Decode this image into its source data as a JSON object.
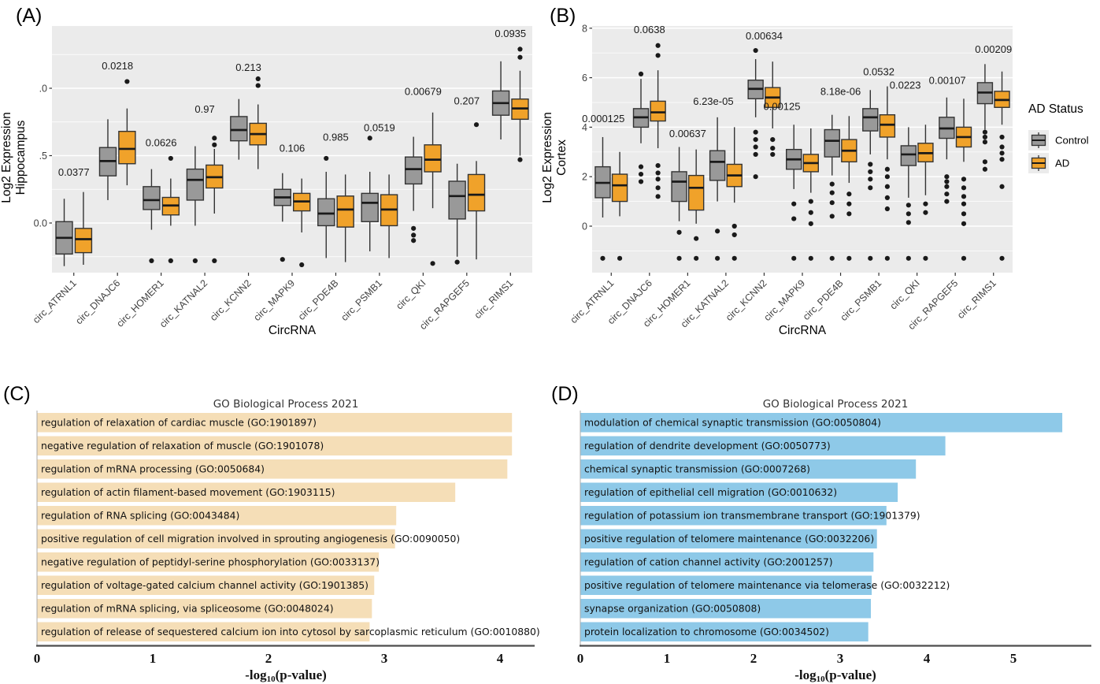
{
  "figure": {
    "colors": {
      "control": "#999999",
      "ad": "#F0A22A",
      "panel_bg": "#EBEBEB",
      "grid_major": "#FFFFFF",
      "grid_minor": "#F7F7F7",
      "box_border": "#333333",
      "median": "#1A1A1A",
      "outlier": "#1A1A1A",
      "axis_text": "#404040",
      "tick_mark": "#333333",
      "bar_c": "#F5DEB7",
      "bar_d": "#8EC9E8",
      "bar_axis": "#4D4D4D",
      "legend_key_bg": "#EBEBEB",
      "text": "#000000"
    },
    "legend": {
      "title": "AD Status",
      "items": [
        {
          "label": "Control",
          "color_key": "control"
        },
        {
          "label": "AD",
          "color_key": "ad"
        }
      ]
    }
  },
  "chart_data": [
    {
      "id": "A",
      "type": "boxplot",
      "panel_label": "(A)",
      "ylabel_lines": [
        "Log2 Expression",
        "Hippocampus"
      ],
      "xlabel": "CircRNA",
      "series": [
        "Control",
        "AD"
      ],
      "yticks": [
        {
          "label": ".0",
          "value": 1.0
        },
        {
          "label": ".5",
          "value": 0.5
        },
        {
          "label": "0.0",
          "value": 0.0
        }
      ],
      "ylim": [
        -0.37,
        1.46
      ],
      "grid_major": [
        0.0,
        0.5,
        1.0
      ],
      "grid_minor": [
        -0.25,
        0.25,
        0.75,
        1.25
      ],
      "groups": [
        {
          "category": "circ_ATRNL1",
          "p_value": "0.0377",
          "p_y": 0.35,
          "p_dx": 0,
          "control": {
            "whisker_lo": -0.32,
            "q1": -0.23,
            "median": -0.11,
            "q3": 0.01,
            "whisker_hi": 0.18,
            "outliers": []
          },
          "ad": {
            "whisker_lo": -0.31,
            "q1": -0.22,
            "median": -0.12,
            "q3": -0.04,
            "whisker_hi": 0.23,
            "outliers": []
          }
        },
        {
          "category": "circ_DNAJC6",
          "p_value": "0.0218",
          "p_y": 1.14,
          "p_dx": 0,
          "control": {
            "whisker_lo": 0.17,
            "q1": 0.35,
            "median": 0.46,
            "q3": 0.56,
            "whisker_hi": 0.77,
            "outliers": []
          },
          "ad": {
            "whisker_lo": 0.28,
            "q1": 0.44,
            "median": 0.55,
            "q3": 0.68,
            "whisker_hi": 0.85,
            "outliers": [
              1.05
            ]
          }
        },
        {
          "category": "circ_HOMER1",
          "p_value": "0.0626",
          "p_y": 0.57,
          "p_dx": 0,
          "control": {
            "whisker_lo": -0.05,
            "q1": 0.1,
            "median": 0.17,
            "q3": 0.27,
            "whisker_hi": 0.4,
            "outliers": [
              -0.28
            ]
          },
          "ad": {
            "whisker_lo": -0.02,
            "q1": 0.06,
            "median": 0.13,
            "q3": 0.19,
            "whisker_hi": 0.33,
            "outliers": [
              0.48,
              -0.28
            ]
          }
        },
        {
          "category": "circ_KATNAL2",
          "p_value": "0.97",
          "p_y": 0.82,
          "p_dx": 0,
          "control": {
            "whisker_lo": -0.02,
            "q1": 0.17,
            "median": 0.32,
            "q3": 0.4,
            "whisker_hi": 0.57,
            "outliers": [
              -0.28
            ]
          },
          "ad": {
            "whisker_lo": 0.07,
            "q1": 0.26,
            "median": 0.34,
            "q3": 0.43,
            "whisker_hi": 0.55,
            "outliers": [
              0.63,
              0.58,
              -0.28
            ]
          }
        },
        {
          "category": "circ_KCNN2",
          "p_value": "0.213",
          "p_y": 1.13,
          "p_dx": 0,
          "control": {
            "whisker_lo": 0.47,
            "q1": 0.61,
            "median": 0.69,
            "q3": 0.79,
            "whisker_hi": 0.92,
            "outliers": []
          },
          "ad": {
            "whisker_lo": 0.4,
            "q1": 0.58,
            "median": 0.66,
            "q3": 0.74,
            "whisker_hi": 0.88,
            "outliers": [
              1.07,
              1.02
            ]
          }
        },
        {
          "category": "circ_MAPK9",
          "p_value": "0.106",
          "p_y": 0.53,
          "p_dx": 0,
          "control": {
            "whisker_lo": 0.01,
            "q1": 0.13,
            "median": 0.19,
            "q3": 0.25,
            "whisker_hi": 0.37,
            "outliers": [
              -0.27
            ]
          },
          "ad": {
            "whisker_lo": -0.07,
            "q1": 0.09,
            "median": 0.16,
            "q3": 0.22,
            "whisker_hi": 0.33,
            "outliers": [
              -0.31
            ]
          }
        },
        {
          "category": "circ_PDE4B",
          "p_value": "0.985",
          "p_y": 0.61,
          "p_dx": 0,
          "control": {
            "whisker_lo": -0.26,
            "q1": -0.02,
            "median": 0.07,
            "q3": 0.18,
            "whisker_hi": 0.38,
            "outliers": [
              0.48
            ]
          },
          "ad": {
            "whisker_lo": -0.29,
            "q1": -0.03,
            "median": 0.1,
            "q3": 0.2,
            "whisker_hi": 0.36,
            "outliers": []
          }
        },
        {
          "category": "circ_PSMB1",
          "p_value": "0.0519",
          "p_y": 0.68,
          "p_dx": 0,
          "control": {
            "whisker_lo": -0.21,
            "q1": 0.01,
            "median": 0.15,
            "q3": 0.22,
            "whisker_hi": 0.38,
            "outliers": [
              0.63
            ]
          },
          "ad": {
            "whisker_lo": -0.26,
            "q1": -0.02,
            "median": 0.1,
            "q3": 0.21,
            "whisker_hi": 0.36,
            "outliers": []
          }
        },
        {
          "category": "circ_QKI",
          "p_value": "0.00679",
          "p_y": 0.95,
          "p_dx": 0,
          "control": {
            "whisker_lo": 0.09,
            "q1": 0.29,
            "median": 0.4,
            "q3": 0.49,
            "whisker_hi": 0.64,
            "outliers": [
              -0.04,
              -0.09,
              -0.13
            ]
          },
          "ad": {
            "whisker_lo": 0.11,
            "q1": 0.38,
            "median": 0.47,
            "q3": 0.58,
            "whisker_hi": 0.82,
            "outliers": [
              -0.3
            ]
          }
        },
        {
          "category": "circ_RAPGEF5",
          "p_value": "0.207",
          "p_y": 0.88,
          "p_dx": 0,
          "control": {
            "whisker_lo": -0.25,
            "q1": 0.03,
            "median": 0.2,
            "q3": 0.31,
            "whisker_hi": 0.44,
            "outliers": [
              -0.29
            ]
          },
          "ad": {
            "whisker_lo": -0.27,
            "q1": 0.09,
            "median": 0.21,
            "q3": 0.36,
            "whisker_hi": 0.46,
            "outliers": [
              0.73
            ]
          }
        },
        {
          "category": "circ_RIMS1",
          "p_value": "0.0935",
          "p_y": 1.38,
          "p_dx": 0,
          "control": {
            "whisker_lo": 0.62,
            "q1": 0.8,
            "median": 0.89,
            "q3": 0.98,
            "whisker_hi": 1.2,
            "outliers": []
          },
          "ad": {
            "whisker_lo": 0.5,
            "q1": 0.77,
            "median": 0.85,
            "q3": 0.92,
            "whisker_hi": 1.13,
            "outliers": [
              1.29,
              1.23,
              0.47
            ]
          }
        }
      ]
    },
    {
      "id": "B",
      "type": "boxplot",
      "panel_label": "(B)",
      "ylabel_lines": [
        "Log2 Expression",
        "Cortex"
      ],
      "xlabel": "CircRNA",
      "series": [
        "Control",
        "AD"
      ],
      "yticks": [
        {
          "label": "8",
          "value": 8
        },
        {
          "label": "6",
          "value": 6
        },
        {
          "label": "4",
          "value": 4
        },
        {
          "label": "2",
          "value": 2
        },
        {
          "label": "0",
          "value": 0
        }
      ],
      "ylim": [
        -1.88,
        8.09
      ],
      "grid_major": [
        0,
        2,
        4,
        6,
        8
      ],
      "grid_minor": [
        -1,
        1,
        3,
        5,
        7
      ],
      "groups": [
        {
          "category": "circ_ATRNL1",
          "p_value": "0.000125",
          "p_y": 4.2,
          "p_dx": -10,
          "control": {
            "whisker_lo": 0.35,
            "q1": 1.15,
            "median": 1.75,
            "q3": 2.4,
            "whisker_hi": 3.6,
            "outliers": [
              -1.3
            ]
          },
          "ad": {
            "whisker_lo": 0.4,
            "q1": 1.0,
            "median": 1.65,
            "q3": 2.1,
            "whisker_hi": 3.0,
            "outliers": [
              -1.3
            ]
          }
        },
        {
          "category": "circ_DNAJC6",
          "p_value": "0.0638",
          "p_y": 7.8,
          "p_dx": 0,
          "control": {
            "whisker_lo": 3.35,
            "q1": 4.0,
            "median": 4.4,
            "q3": 4.75,
            "whisker_hi": 5.95,
            "outliers": [
              6.15,
              2.4,
              2.1,
              1.8
            ]
          },
          "ad": {
            "whisker_lo": 3.15,
            "q1": 4.25,
            "median": 4.6,
            "q3": 5.05,
            "whisker_hi": 6.3,
            "outliers": [
              7.3,
              6.9,
              2.45,
              2.15,
              1.9,
              1.55,
              1.2
            ]
          }
        },
        {
          "category": "circ_HOMER1",
          "p_value": "0.00637",
          "p_y": 3.6,
          "p_dx": 0,
          "control": {
            "whisker_lo": 0.2,
            "q1": 1.0,
            "median": 1.8,
            "q3": 2.2,
            "whisker_hi": 3.2,
            "outliers": [
              -0.25,
              -1.3
            ]
          },
          "ad": {
            "whisker_lo": 0.1,
            "q1": 0.65,
            "median": 1.55,
            "q3": 2.05,
            "whisker_hi": 3.1,
            "outliers": [
              -0.5,
              -1.3
            ]
          }
        },
        {
          "category": "circ_KATNAL2",
          "p_value": "6.23e-05",
          "p_y": 4.9,
          "p_dx": -16,
          "control": {
            "whisker_lo": 1.0,
            "q1": 1.85,
            "median": 2.6,
            "q3": 3.05,
            "whisker_hi": 4.4,
            "outliers": [
              -0.2,
              -1.3
            ]
          },
          "ad": {
            "whisker_lo": 0.95,
            "q1": 1.6,
            "median": 2.05,
            "q3": 2.5,
            "whisker_hi": 4.0,
            "outliers": [
              0.0,
              -0.35,
              -1.3
            ]
          }
        },
        {
          "category": "circ_KCNN2",
          "p_value": "0.00634",
          "p_y": 7.55,
          "p_dx": 0,
          "control": {
            "whisker_lo": 4.4,
            "q1": 5.15,
            "median": 5.55,
            "q3": 5.9,
            "whisker_hi": 6.75,
            "outliers": [
              7.1,
              3.8,
              3.5,
              3.2,
              2.9,
              2.0
            ]
          },
          "ad": {
            "whisker_lo": 3.95,
            "q1": 4.8,
            "median": 5.2,
            "q3": 5.6,
            "whisker_hi": 6.65,
            "outliers": [
              3.5,
              3.15,
              2.9
            ]
          }
        },
        {
          "category": "circ_MAPK9",
          "p_value": "0.00125",
          "p_y": 4.7,
          "p_dx": -26,
          "control": {
            "whisker_lo": 1.5,
            "q1": 2.3,
            "median": 2.7,
            "q3": 3.1,
            "whisker_hi": 4.1,
            "outliers": [
              0.9,
              0.3,
              -1.3
            ]
          },
          "ad": {
            "whisker_lo": 1.35,
            "q1": 2.2,
            "median": 2.55,
            "q3": 2.9,
            "whisker_hi": 3.95,
            "outliers": [
              1.0,
              0.55,
              0.1,
              -1.3
            ]
          }
        },
        {
          "category": "circ_PDE4B",
          "p_value": "8.18e-06",
          "p_y": 5.3,
          "p_dx": 0,
          "control": {
            "whisker_lo": 2.05,
            "q1": 2.8,
            "median": 3.45,
            "q3": 3.9,
            "whisker_hi": 4.5,
            "outliers": [
              1.7,
              1.35,
              0.95,
              0.4,
              -1.3
            ]
          },
          "ad": {
            "whisker_lo": 1.75,
            "q1": 2.6,
            "median": 3.05,
            "q3": 3.5,
            "whisker_hi": 4.45,
            "outliers": [
              1.3,
              0.9,
              0.5,
              -1.3
            ]
          }
        },
        {
          "category": "circ_PSMB1",
          "p_value": "0.0532",
          "p_y": 6.1,
          "p_dx": 0,
          "control": {
            "whisker_lo": 2.9,
            "q1": 3.85,
            "median": 4.4,
            "q3": 4.75,
            "whisker_hi": 5.5,
            "outliers": [
              2.5,
              2.2,
              1.9,
              1.55,
              -1.3
            ]
          },
          "ad": {
            "whisker_lo": 2.7,
            "q1": 3.6,
            "median": 4.1,
            "q3": 4.5,
            "whisker_hi": 5.65,
            "outliers": [
              2.3,
              2.0,
              1.6,
              1.15,
              0.7,
              -1.3
            ]
          }
        },
        {
          "category": "circ_QKI",
          "p_value": "0.0223",
          "p_y": 5.55,
          "p_dx": -15,
          "control": {
            "whisker_lo": 1.15,
            "q1": 2.45,
            "median": 2.9,
            "q3": 3.25,
            "whisker_hi": 4.0,
            "outliers": [
              0.85,
              0.5,
              0.15,
              -1.3
            ]
          },
          "ad": {
            "whisker_lo": 1.25,
            "q1": 2.6,
            "median": 2.95,
            "q3": 3.35,
            "whisker_hi": 4.1,
            "outliers": [
              0.9,
              0.55,
              -1.3
            ]
          }
        },
        {
          "category": "circ_RAPGEF5",
          "p_value": "0.00107",
          "p_y": 5.75,
          "p_dx": -10,
          "control": {
            "whisker_lo": 2.7,
            "q1": 3.55,
            "median": 3.95,
            "q3": 4.4,
            "whisker_hi": 5.2,
            "outliers": [
              2.0,
              1.8,
              1.6,
              1.3,
              1.0
            ]
          },
          "ad": {
            "whisker_lo": 2.6,
            "q1": 3.2,
            "median": 3.6,
            "q3": 4.0,
            "whisker_hi": 5.15,
            "outliers": [
              1.9,
              1.55,
              1.2,
              0.9,
              0.5,
              0.1,
              -1.3
            ]
          }
        },
        {
          "category": "circ_RIMS1",
          "p_value": "0.00209",
          "p_y": 7.0,
          "p_dx": 0,
          "control": {
            "whisker_lo": 3.9,
            "q1": 4.95,
            "median": 5.4,
            "q3": 5.8,
            "whisker_hi": 6.55,
            "outliers": [
              3.8,
              3.6,
              3.4,
              2.6,
              2.3
            ]
          },
          "ad": {
            "whisker_lo": 4.1,
            "q1": 4.8,
            "median": 5.1,
            "q3": 5.45,
            "whisker_hi": 6.25,
            "outliers": [
              3.6,
              3.2,
              2.95,
              2.7,
              1.6,
              -1.3
            ]
          }
        }
      ]
    },
    {
      "id": "C",
      "type": "bar",
      "panel_label": "(C)",
      "title": "GO Biological Process 2021",
      "xlabel": "-log10(p-value)",
      "xticks": [
        0,
        1,
        2,
        3,
        4
      ],
      "xlim": [
        0,
        4.3
      ],
      "bar_color_key": "bar_c",
      "bars": [
        {
          "label": "regulation of relaxation of cardiac muscle (GO:1901897)",
          "value": 4.1
        },
        {
          "label": "negative regulation of relaxation of muscle (GO:1901078)",
          "value": 4.1
        },
        {
          "label": "regulation of mRNA processing (GO:0050684)",
          "value": 4.06
        },
        {
          "label": "regulation of actin filament-based movement (GO:1903115)",
          "value": 3.61
        },
        {
          "label": "regulation of RNA splicing (GO:0043484)",
          "value": 3.1
        },
        {
          "label": "positive regulation of cell migration involved in sprouting angiogenesis (GO:0090050)",
          "value": 3.09
        },
        {
          "label": "negative regulation of peptidyl-serine phosphorylation (GO:0033137)",
          "value": 2.95
        },
        {
          "label": "regulation of voltage-gated calcium channel activity (GO:1901385)",
          "value": 2.91
        },
        {
          "label": "regulation of mRNA splicing, via spliceosome (GO:0048024)",
          "value": 2.89
        },
        {
          "label": "regulation of release of sequestered calcium ion into cytosol by sarcoplasmic reticulum (GO:0010880)",
          "value": 2.87
        }
      ]
    },
    {
      "id": "D",
      "type": "bar",
      "panel_label": "(D)",
      "title": "GO Biological Process 2021",
      "xlabel": "-log10(p-value)",
      "xticks": [
        0,
        1,
        2,
        3,
        4,
        5
      ],
      "xlim": [
        0,
        5.9
      ],
      "bar_color_key": "bar_d",
      "bars": [
        {
          "label": "modulation of chemical synaptic transmission (GO:0050804)",
          "value": 5.56
        },
        {
          "label": "regulation of dendrite development (GO:0050773)",
          "value": 4.21
        },
        {
          "label": "chemical synaptic transmission (GO:0007268)",
          "value": 3.87
        },
        {
          "label": "regulation of epithelial cell migration (GO:0010632)",
          "value": 3.66
        },
        {
          "label": "regulation of potassium ion transmembrane transport (GO:1901379)",
          "value": 3.53
        },
        {
          "label": "positive regulation of telomere maintenance (GO:0032206)",
          "value": 3.42
        },
        {
          "label": "regulation of cation channel activity (GO:2001257)",
          "value": 3.38
        },
        {
          "label": "positive regulation of telomere maintenance via telomerase (GO:0032212)",
          "value": 3.36
        },
        {
          "label": "synapse organization (GO:0050808)",
          "value": 3.35
        },
        {
          "label": "protein localization to chromosome (GO:0034502)",
          "value": 3.32
        }
      ]
    }
  ]
}
